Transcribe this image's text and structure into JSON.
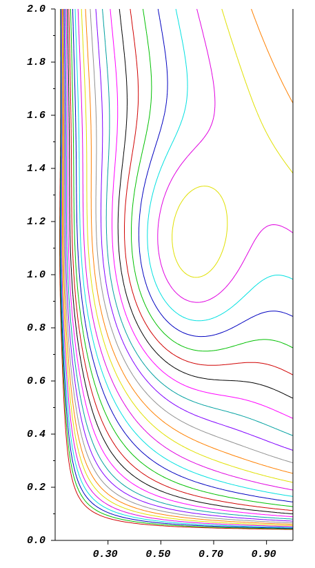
{
  "chart_data": {
    "type": "contour",
    "xlim": [
      0.1,
      1.0
    ],
    "xticks": [
      {
        "value": 0.3,
        "label": "0.30"
      },
      {
        "value": 0.5,
        "label": "0.50"
      },
      {
        "value": 0.7,
        "label": "0.70"
      },
      {
        "value": 0.9,
        "label": "0.90"
      }
    ],
    "ylim": [
      0,
      2
    ],
    "yticks": [
      {
        "value": 0,
        "label": "0.0"
      },
      0.2,
      0.4,
      0.6,
      0.8,
      {
        "value": 1,
        "label": "1.0"
      },
      1.2,
      1.4,
      1.6,
      1.8,
      {
        "value": 2,
        "label": "2.0"
      }
    ],
    "grid": false
  }
}
